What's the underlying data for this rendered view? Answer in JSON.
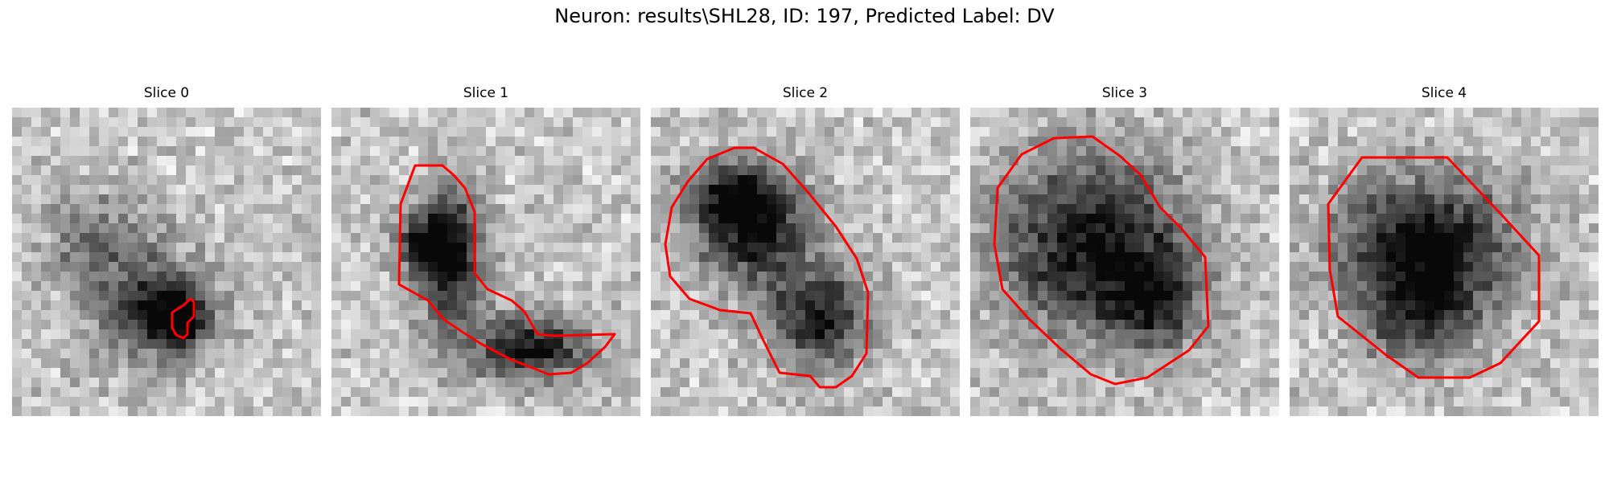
{
  "figure": {
    "title": "Neuron: results\\SHL28, ID: 197, Predicted Label: DV"
  },
  "panels": [
    {
      "title": "Slice 0",
      "contour_color": "#ff0000",
      "colormap": "grayscale"
    },
    {
      "title": "Slice 1",
      "contour_color": "#ff0000",
      "colormap": "grayscale"
    },
    {
      "title": "Slice 2",
      "contour_color": "#ff0000",
      "colormap": "grayscale"
    },
    {
      "title": "Slice 3",
      "contour_color": "#ff0000",
      "colormap": "grayscale"
    },
    {
      "title": "Slice 4",
      "contour_color": "#ff0000",
      "colormap": "grayscale"
    }
  ]
}
